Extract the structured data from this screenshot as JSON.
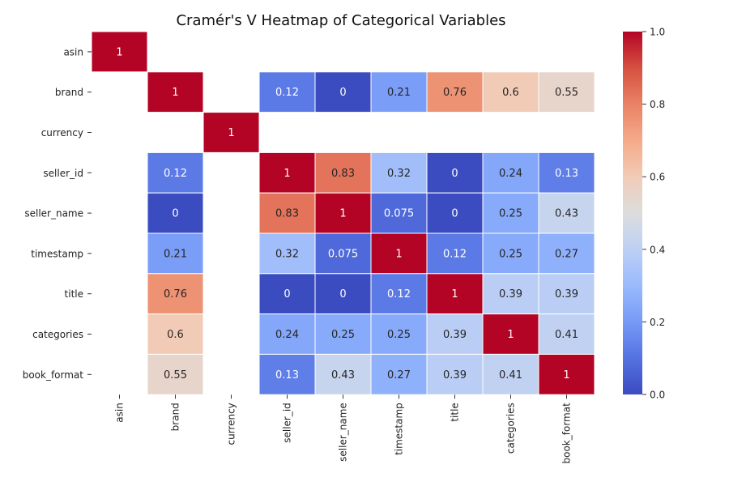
{
  "chart_data": {
    "type": "heatmap",
    "title": "Cramér's V Heatmap of Categorical Variables",
    "rows": [
      "asin",
      "brand",
      "currency",
      "seller_id",
      "seller_name",
      "timestamp",
      "title",
      "categories",
      "book_format"
    ],
    "columns": [
      "asin",
      "brand",
      "currency",
      "seller_id",
      "seller_name",
      "timestamp",
      "title",
      "categories",
      "book_format"
    ],
    "values": [
      [
        1,
        null,
        null,
        null,
        null,
        null,
        null,
        null,
        null
      ],
      [
        null,
        1,
        null,
        0.12,
        0,
        0.21,
        0.76,
        0.6,
        0.55
      ],
      [
        null,
        null,
        1,
        null,
        null,
        null,
        null,
        null,
        null
      ],
      [
        null,
        0.12,
        null,
        1,
        0.83,
        0.32,
        0,
        0.24,
        0.13
      ],
      [
        null,
        0,
        null,
        0.83,
        1,
        0.075,
        0,
        0.25,
        0.43
      ],
      [
        null,
        0.21,
        null,
        0.32,
        0.075,
        1,
        0.12,
        0.25,
        0.27
      ],
      [
        null,
        0.76,
        null,
        0,
        0,
        0.12,
        1,
        0.39,
        0.39
      ],
      [
        null,
        0.6,
        null,
        0.24,
        0.25,
        0.25,
        0.39,
        1,
        0.41
      ],
      [
        null,
        0.55,
        null,
        0.13,
        0.43,
        0.27,
        0.39,
        0.41,
        1
      ]
    ],
    "colorbar": {
      "min": 0,
      "max": 1,
      "ticks": [
        "0.0",
        "0.2",
        "0.4",
        "0.6",
        "0.8",
        "1.0"
      ],
      "colormap": "coolwarm",
      "low_color": "#3b4cc0",
      "mid_color": "#dddddd",
      "high_color": "#b40426"
    },
    "legend_placement": "right",
    "grid": false
  }
}
